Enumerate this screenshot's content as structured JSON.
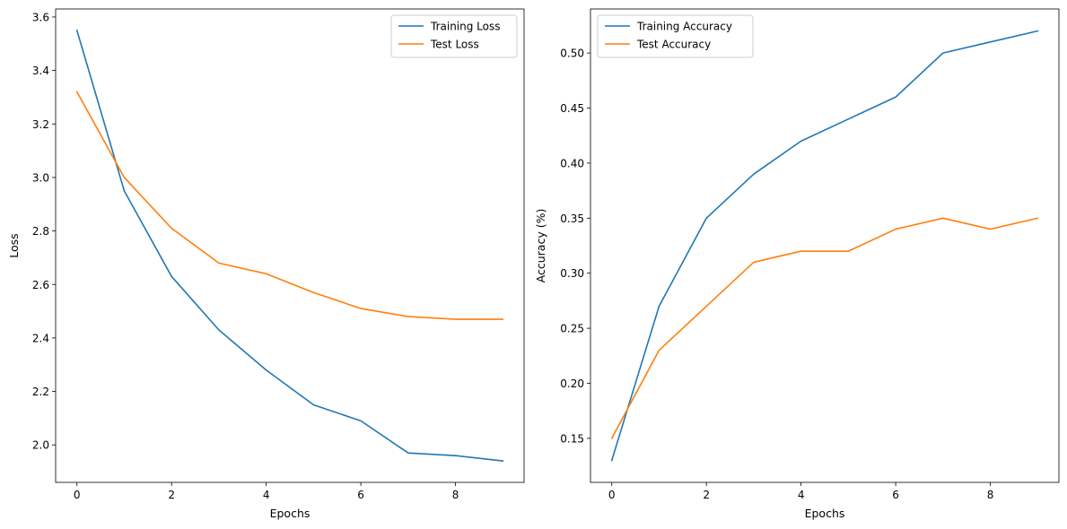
{
  "chart_data": [
    {
      "type": "line",
      "title": "",
      "xlabel": "Epochs",
      "ylabel": "Loss",
      "xlim": [
        -0.45,
        9.45
      ],
      "ylim": [
        1.86,
        3.63
      ],
      "xticks": [
        0,
        2,
        4,
        6,
        8
      ],
      "xtick_labels": [
        "0",
        "2",
        "4",
        "6",
        "8"
      ],
      "yticks": [
        2.0,
        2.2,
        2.4,
        2.6,
        2.8,
        3.0,
        3.2,
        3.4,
        3.6
      ],
      "ytick_labels": [
        "2.0",
        "2.2",
        "2.4",
        "2.6",
        "2.8",
        "3.0",
        "3.2",
        "3.4",
        "3.6"
      ],
      "grid": false,
      "legend_position": "top-right",
      "x": [
        0,
        1,
        2,
        3,
        4,
        5,
        6,
        7,
        8,
        9
      ],
      "series": [
        {
          "name": "Training Loss",
          "color": "#1f77b4",
          "values": [
            3.55,
            2.95,
            2.63,
            2.43,
            2.28,
            2.15,
            2.09,
            1.97,
            1.96,
            1.94
          ]
        },
        {
          "name": "Test Loss",
          "color": "#ff7f0e",
          "values": [
            3.32,
            3.0,
            2.81,
            2.68,
            2.64,
            2.57,
            2.51,
            2.48,
            2.47,
            2.47
          ]
        }
      ]
    },
    {
      "type": "line",
      "title": "",
      "xlabel": "Epochs",
      "ylabel": "Accuracy (%)",
      "xlim": [
        -0.45,
        9.45
      ],
      "ylim": [
        0.11,
        0.54
      ],
      "xticks": [
        0,
        2,
        4,
        6,
        8
      ],
      "xtick_labels": [
        "0",
        "2",
        "4",
        "6",
        "8"
      ],
      "yticks": [
        0.15,
        0.2,
        0.25,
        0.3,
        0.35,
        0.4,
        0.45,
        0.5
      ],
      "ytick_labels": [
        "0.15",
        "0.20",
        "0.25",
        "0.30",
        "0.35",
        "0.40",
        "0.45",
        "0.50"
      ],
      "grid": false,
      "legend_position": "top-left",
      "x": [
        0,
        1,
        2,
        3,
        4,
        5,
        6,
        7,
        8,
        9
      ],
      "series": [
        {
          "name": "Training Accuracy",
          "color": "#1f77b4",
          "values": [
            0.13,
            0.27,
            0.35,
            0.39,
            0.42,
            0.44,
            0.46,
            0.5,
            0.51,
            0.52
          ]
        },
        {
          "name": "Test Accuracy",
          "color": "#ff7f0e",
          "values": [
            0.15,
            0.23,
            0.27,
            0.31,
            0.32,
            0.32,
            0.34,
            0.35,
            0.34,
            0.35
          ]
        }
      ]
    }
  ]
}
